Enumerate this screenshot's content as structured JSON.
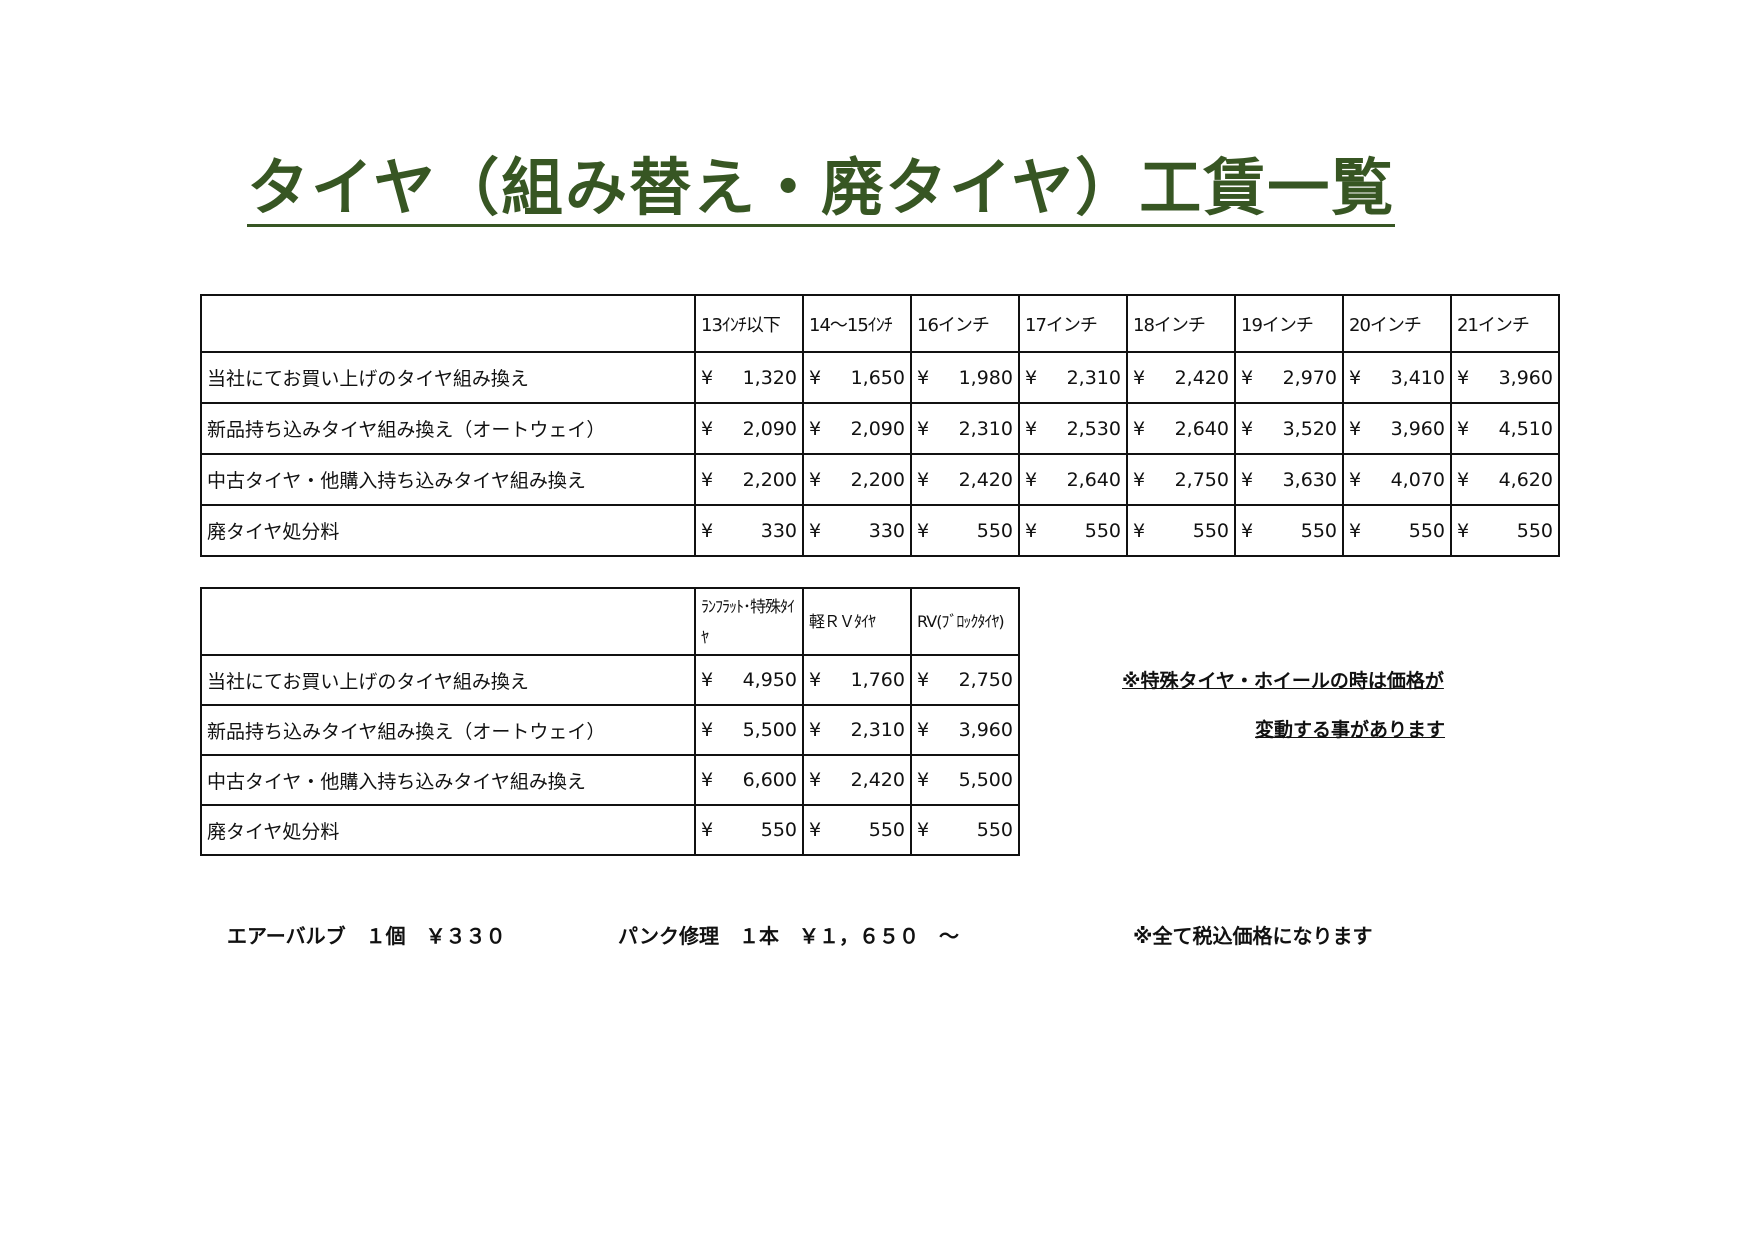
{
  "title": "タイヤ（組み替え・廃タイヤ）工賃一覧",
  "currency": "¥",
  "table1": {
    "headers": [
      "13ｲﾝﾁ以下",
      "14～15ｲﾝﾁ",
      "16インチ",
      "17インチ",
      "18インチ",
      "19インチ",
      "20インチ",
      "21インチ"
    ],
    "rows": [
      {
        "label": "当社にてお買い上げのタイヤ組み換え",
        "values": [
          "1,320",
          "1,650",
          "1,980",
          "2,310",
          "2,420",
          "2,970",
          "3,410",
          "3,960"
        ]
      },
      {
        "label": "新品持ち込みタイヤ組み換え（オートウェイ）",
        "values": [
          "2,090",
          "2,090",
          "2,310",
          "2,530",
          "2,640",
          "3,520",
          "3,960",
          "4,510"
        ]
      },
      {
        "label": "中古タイヤ・他購入持ち込みタイヤ組み換え",
        "values": [
          "2,200",
          "2,200",
          "2,420",
          "2,640",
          "2,750",
          "3,630",
          "4,070",
          "4,620"
        ]
      },
      {
        "label": "廃タイヤ処分料",
        "values": [
          "330",
          "330",
          "550",
          "550",
          "550",
          "550",
          "550",
          "550"
        ]
      }
    ]
  },
  "table2": {
    "headers": [
      "ﾗﾝﾌﾗｯﾄ･特殊ﾀｲﾔ",
      "軽ＲＶﾀｲﾔ",
      "RV(ﾌﾞﾛｯｸﾀｲﾔ)"
    ],
    "rows": [
      {
        "label": "当社にてお買い上げのタイヤ組み換え",
        "values": [
          "4,950",
          "1,760",
          "2,750"
        ]
      },
      {
        "label": "新品持ち込みタイヤ組み換え（オートウェイ）",
        "values": [
          "5,500",
          "2,310",
          "3,960"
        ]
      },
      {
        "label": "中古タイヤ・他購入持ち込みタイヤ組み換え",
        "values": [
          "6,600",
          "2,420",
          "5,500"
        ]
      },
      {
        "label": "廃タイヤ処分料",
        "values": [
          "550",
          "550",
          "550"
        ]
      }
    ]
  },
  "notes": {
    "special_line1": "※特殊タイヤ・ホイールの時は価格が",
    "special_line2": "変動する事があります"
  },
  "footer": {
    "air_valve": "エアーバルブ　１個　￥３３０",
    "puncture": "パンク修理　１本　￥１，６５０　～",
    "tax": "※全て税込価格になります"
  },
  "colors": {
    "title": "#375623",
    "border": "#111111"
  }
}
